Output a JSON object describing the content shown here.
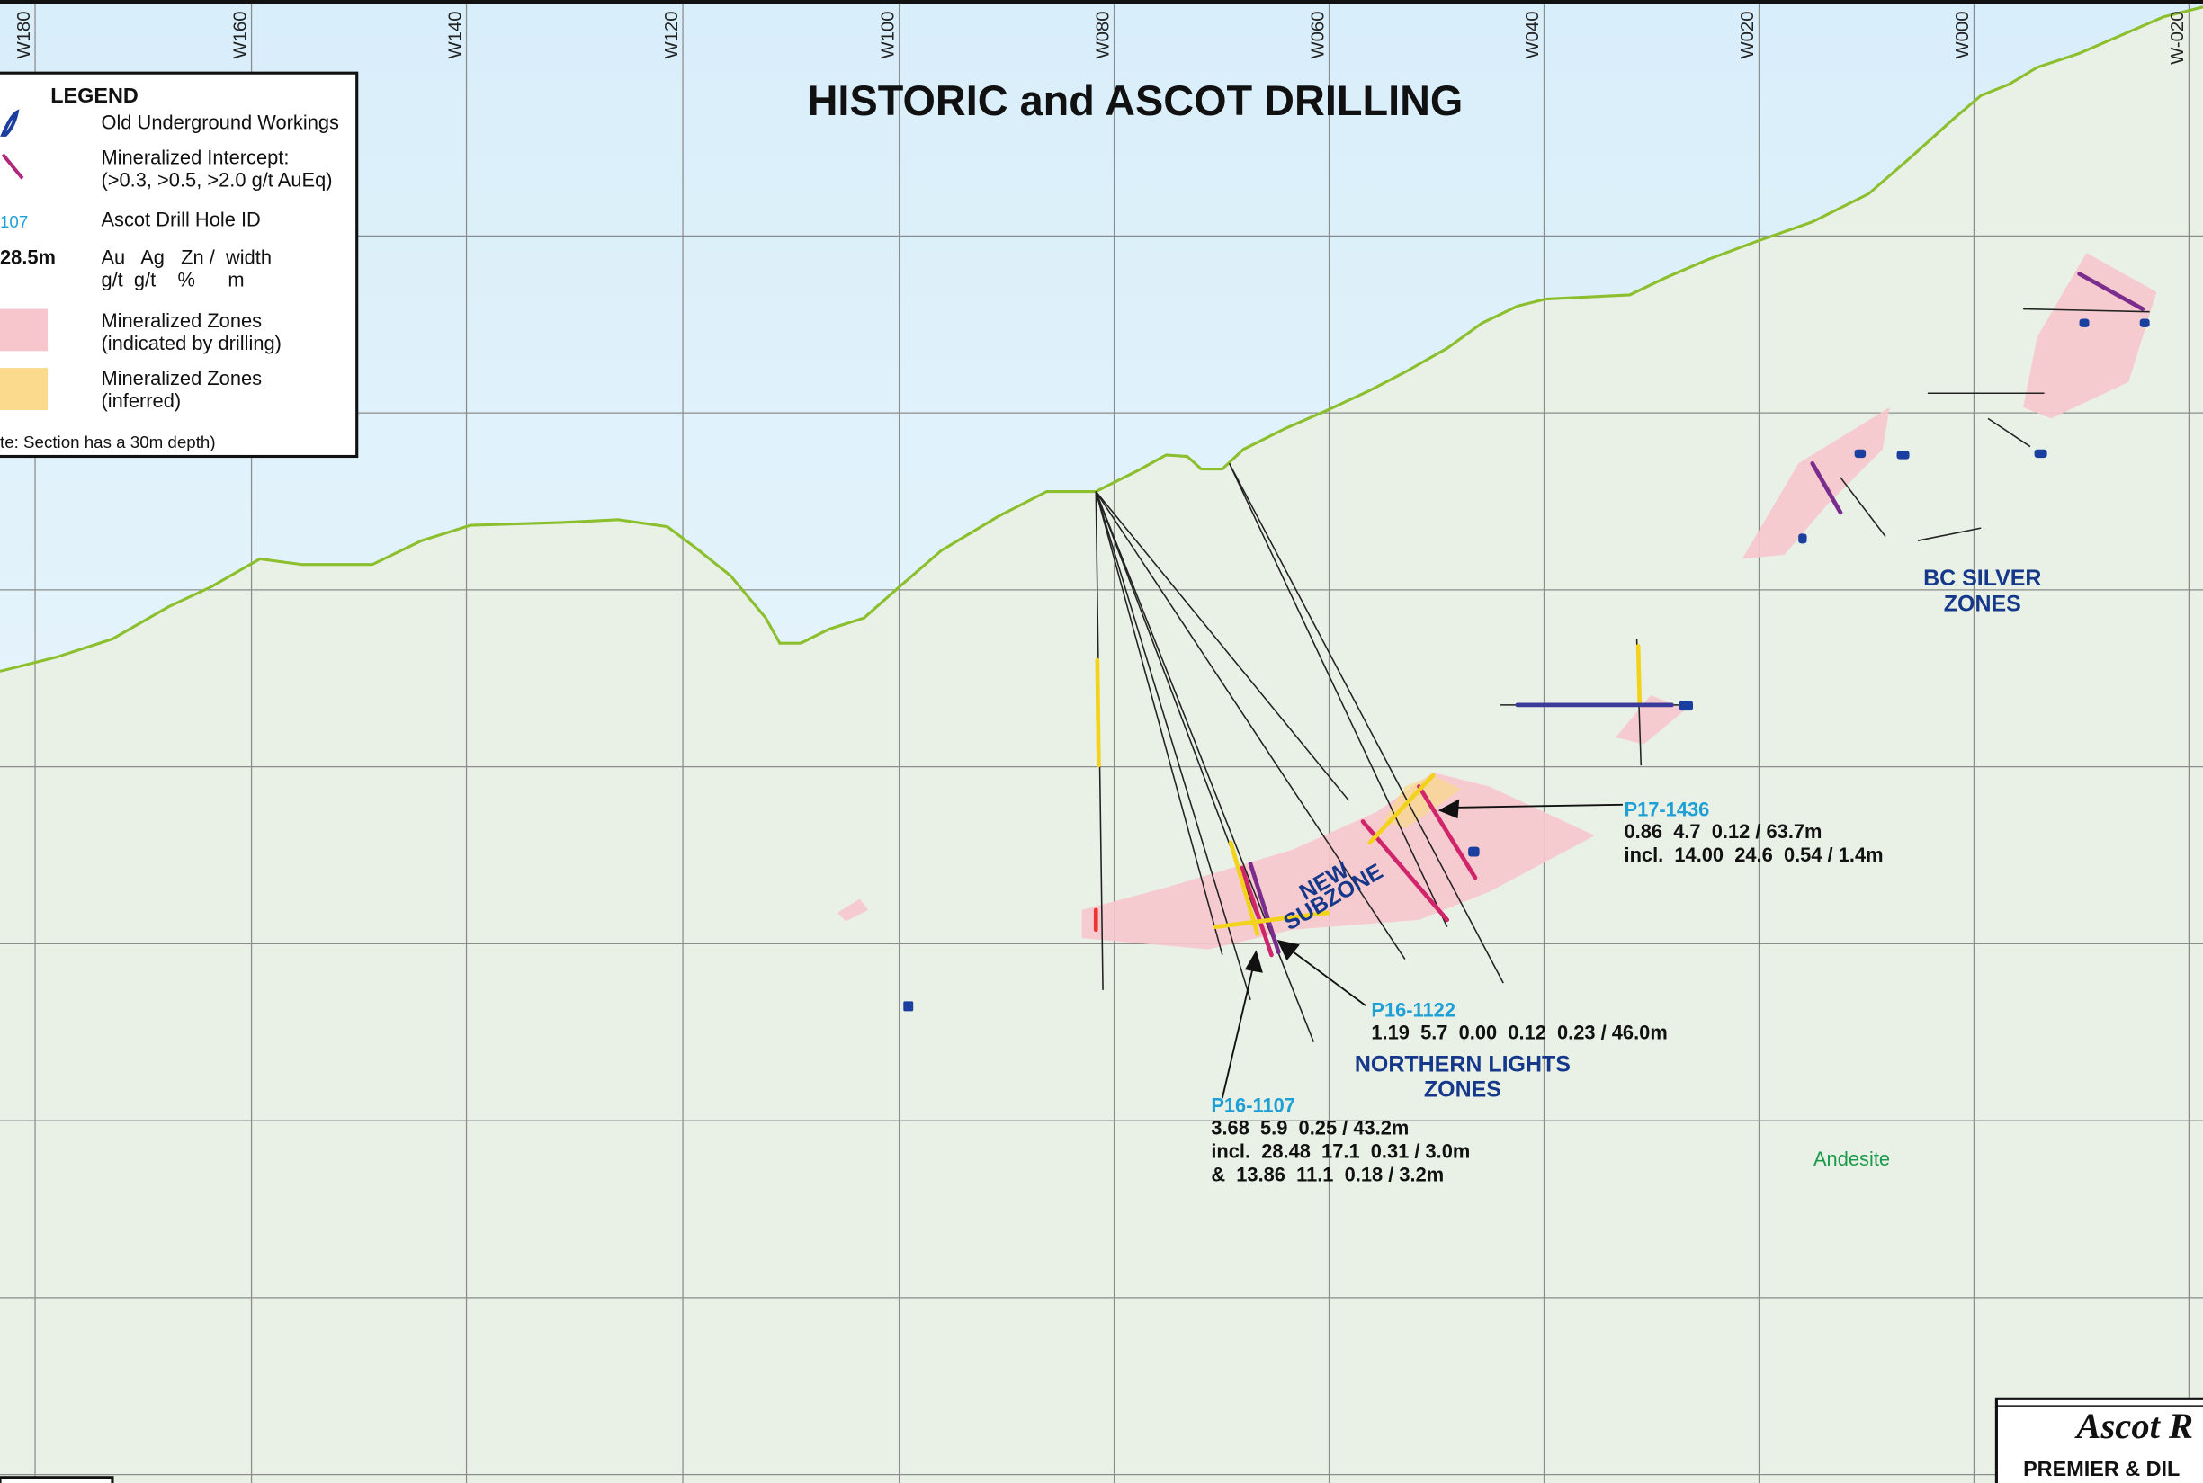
{
  "title": "HISTORIC and ASCOT DRILLING",
  "grid_labels": [
    "W180",
    "W160",
    "W140",
    "W120",
    "W100",
    "W080",
    "W060",
    "W040",
    "W020",
    "W000",
    "W-020"
  ],
  "legend": {
    "title": "LEGEND",
    "items": [
      {
        "symbol": "",
        "lines": [
          "Old Underground Workings"
        ]
      },
      {
        "symbol": "",
        "lines": [
          "Mineralized Intercept:",
          "(>0.3, >0.5, >2.0 g/t AuEq)"
        ]
      },
      {
        "symbol": "107",
        "lines": [
          "Ascot Drill Hole ID"
        ]
      },
      {
        "symbol": "28.5m",
        "lines": [
          "Au   Ag   Zn /  width",
          "g/t  g/t    %      m"
        ]
      },
      {
        "symbol": "",
        "lines": [
          "Mineralized Zones",
          "(indicated by drilling)"
        ]
      },
      {
        "symbol": "",
        "lines": [
          "Mineralized Zones",
          "(inferred)"
        ]
      }
    ],
    "note": "te: Section has a 30m depth)"
  },
  "annotations": [
    {
      "hole_id": "P17-1436",
      "lines": [
        "0.86  4.7  0.12 / 63.7m",
        "incl.  14.00  24.6  0.54 / 1.4m"
      ]
    },
    {
      "hole_id": "P16-1122",
      "lines": [
        "1.19  5.7  0.00  0.12  0.23 / 46.0m"
      ]
    },
    {
      "hole_id": "P16-1107",
      "lines": [
        "3.68  5.9  0.25 / 43.2m",
        "incl.  28.48  17.1  0.31 / 3.0m",
        "&  13.86  11.1  0.18 / 3.2m"
      ]
    }
  ],
  "zones": [
    {
      "lines": [
        "NORTHERN LIGHTS",
        "ZONES"
      ]
    },
    {
      "lines": [
        "BC SILVER",
        "ZONES"
      ]
    },
    {
      "lines": [
        "NEW",
        "SUBZONE"
      ]
    }
  ],
  "rock_label": "Andesite",
  "title_block": {
    "company": "Ascot R",
    "project": "PREMIER & DIL"
  }
}
